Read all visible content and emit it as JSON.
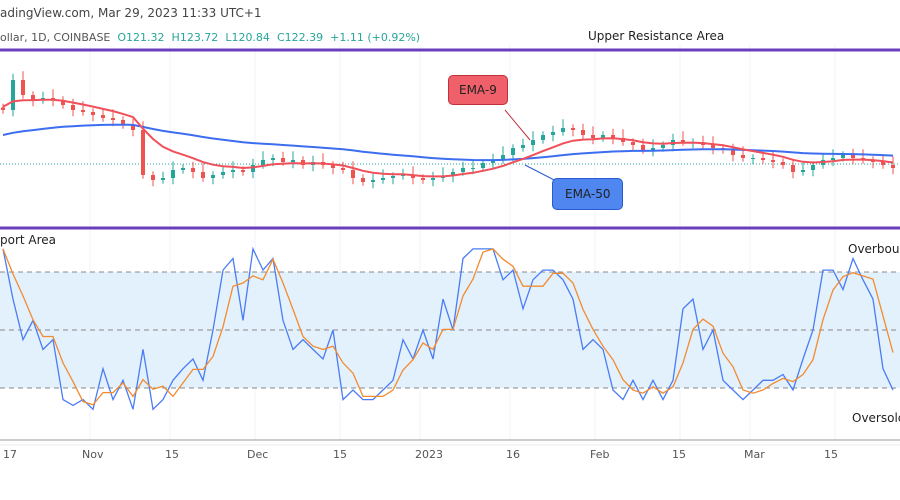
{
  "header": {
    "source": "adingView.com, Mar 29, 2023 11:33 UTC+1",
    "symbol": "ollar, 1D, COINBASE",
    "open": "O121.32",
    "high": "H123.72",
    "low": "L120.84",
    "close": "C122.39",
    "change": "+1.11 (+0.92%)"
  },
  "annotations": {
    "upper_resistance": "Upper Resistance Area",
    "lower_support": "port Area",
    "overbought": "Overboug",
    "oversold": "Oversolc",
    "ema9": "EMA-9",
    "ema50": "EMA-50"
  },
  "colors": {
    "up": "#26a69a",
    "down": "#ef5350",
    "ema9": "#f0505a",
    "ema50": "#3d6ef0",
    "k": "#4a7cf5",
    "d": "#f28b30",
    "level": "#6a3fbf",
    "band": "#e3f1fc"
  },
  "chart_data": [
    {
      "type": "candlestick",
      "x_ticks": [
        "17",
        "Nov",
        "15",
        "Dec",
        "15",
        "2023",
        "16",
        "Feb",
        "15",
        "Mar",
        "15"
      ],
      "closes": [
        144.4,
        156.4,
        150.4,
        148.4,
        149.2,
        148.4,
        146.4,
        144.4,
        143.6,
        142.4,
        141.2,
        140.4,
        138.4,
        136.4,
        118.4,
        116.4,
        117.2,
        120.4,
        121.2,
        119.6,
        117.2,
        118.4,
        119.6,
        120.4,
        119.6,
        122.4,
        124.4,
        125.2,
        123.6,
        124.4,
        122.4,
        123.6,
        122.4,
        121.2,
        120.4,
        117.2,
        115.6,
        116.4,
        117.2,
        118.0,
        118.4,
        117.2,
        116.4,
        117.2,
        118.0,
        119.6,
        121.2,
        121.2,
        123.2,
        124.4,
        126.4,
        129.2,
        130.4,
        132.4,
        134.4,
        135.6,
        137.2,
        136.4,
        134.4,
        133.2,
        134.4,
        133.2,
        131.6,
        130.4,
        128.4,
        129.2,
        130.4,
        132.4,
        131.6,
        131.6,
        130.4,
        129.2,
        128.4,
        126.4,
        125.2,
        125.2,
        124.4,
        123.6,
        122.4,
        119.6,
        120.4,
        122.4,
        124.4,
        125.2,
        126.4,
        125.2,
        124.4,
        123.6,
        122.4,
        121.2
      ],
      "last_close": 122.39,
      "series": [
        {
          "name": "EMA-9",
          "period": 9
        },
        {
          "name": "EMA-50",
          "period": 50
        }
      ]
    },
    {
      "type": "line",
      "ylim": [
        0,
        100
      ],
      "levels": [
        80,
        50,
        20
      ],
      "k": [
        92,
        66,
        45,
        55,
        40,
        45,
        14,
        11,
        14,
        9,
        30,
        14,
        24,
        9,
        40,
        9,
        14,
        24,
        30,
        35,
        24,
        50,
        81,
        87,
        55,
        92,
        81,
        87,
        55,
        40,
        45,
        40,
        35,
        50,
        14,
        19,
        14,
        14,
        19,
        24,
        45,
        35,
        50,
        35,
        66,
        50,
        87,
        92,
        92,
        92,
        76,
        81,
        61,
        76,
        81,
        81,
        76,
        66,
        40,
        45,
        40,
        19,
        14,
        24,
        14,
        24,
        14,
        24,
        61,
        66,
        40,
        50,
        24,
        19,
        14,
        19,
        24,
        24,
        27,
        19,
        35,
        50,
        81,
        81,
        71,
        87,
        76,
        66,
        30,
        19
      ]
    }
  ]
}
